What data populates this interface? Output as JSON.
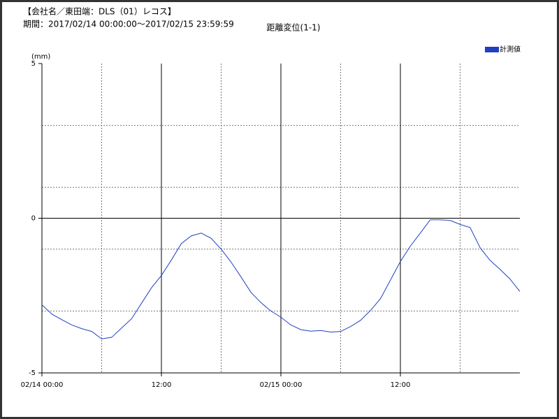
{
  "header": {
    "company": "【会社名／東田端：DLS（01）レコス】",
    "period": "期間：2017/02/14 00:00:00～2017/02/15 23:59:59"
  },
  "chart_data": {
    "type": "line",
    "title": "距離変位(1-1)",
    "y_label": "(mm)",
    "x": [
      0,
      1,
      2,
      3,
      4,
      5,
      6,
      7,
      8,
      9,
      10,
      11,
      12,
      13,
      14,
      15,
      16,
      17,
      18,
      19,
      20,
      21,
      22,
      23,
      24,
      25,
      26,
      27,
      28,
      29,
      30,
      31,
      32,
      33,
      34,
      35,
      36,
      37,
      38,
      39,
      40,
      41,
      42,
      43,
      44,
      45,
      46,
      47,
      48
    ],
    "series": [
      {
        "name": "計測値",
        "color": "#2040c0",
        "values": [
          -2.8,
          -3.1,
          -3.28,
          -3.45,
          -3.57,
          -3.66,
          -3.9,
          -3.85,
          -3.55,
          -3.25,
          -2.75,
          -2.25,
          -1.85,
          -1.35,
          -0.82,
          -0.57,
          -0.48,
          -0.65,
          -1.0,
          -1.42,
          -1.9,
          -2.4,
          -2.73,
          -3.0,
          -3.2,
          -3.45,
          -3.6,
          -3.65,
          -3.63,
          -3.68,
          -3.66,
          -3.5,
          -3.3,
          -2.98,
          -2.6,
          -2.0,
          -1.4,
          -0.9,
          -0.48,
          -0.05,
          -0.05,
          -0.07,
          -0.2,
          -0.3,
          -0.95,
          -1.36,
          -1.65,
          -1.96,
          -2.37
        ]
      }
    ],
    "xlim": [
      0,
      48
    ],
    "xticks": [
      {
        "value": 0,
        "label": "02/14 00:00"
      },
      {
        "value": 12,
        "label": "12:00"
      },
      {
        "value": 24,
        "label": "02/15 00:00"
      },
      {
        "value": 36,
        "label": "12:00"
      }
    ],
    "xminor": [
      6,
      18,
      30,
      42
    ],
    "ylim": [
      -5,
      5
    ],
    "yticks": [
      -5,
      0,
      5
    ],
    "yminor": [
      -3,
      -1,
      1,
      3
    ],
    "grid": true,
    "legend": "upper right"
  }
}
